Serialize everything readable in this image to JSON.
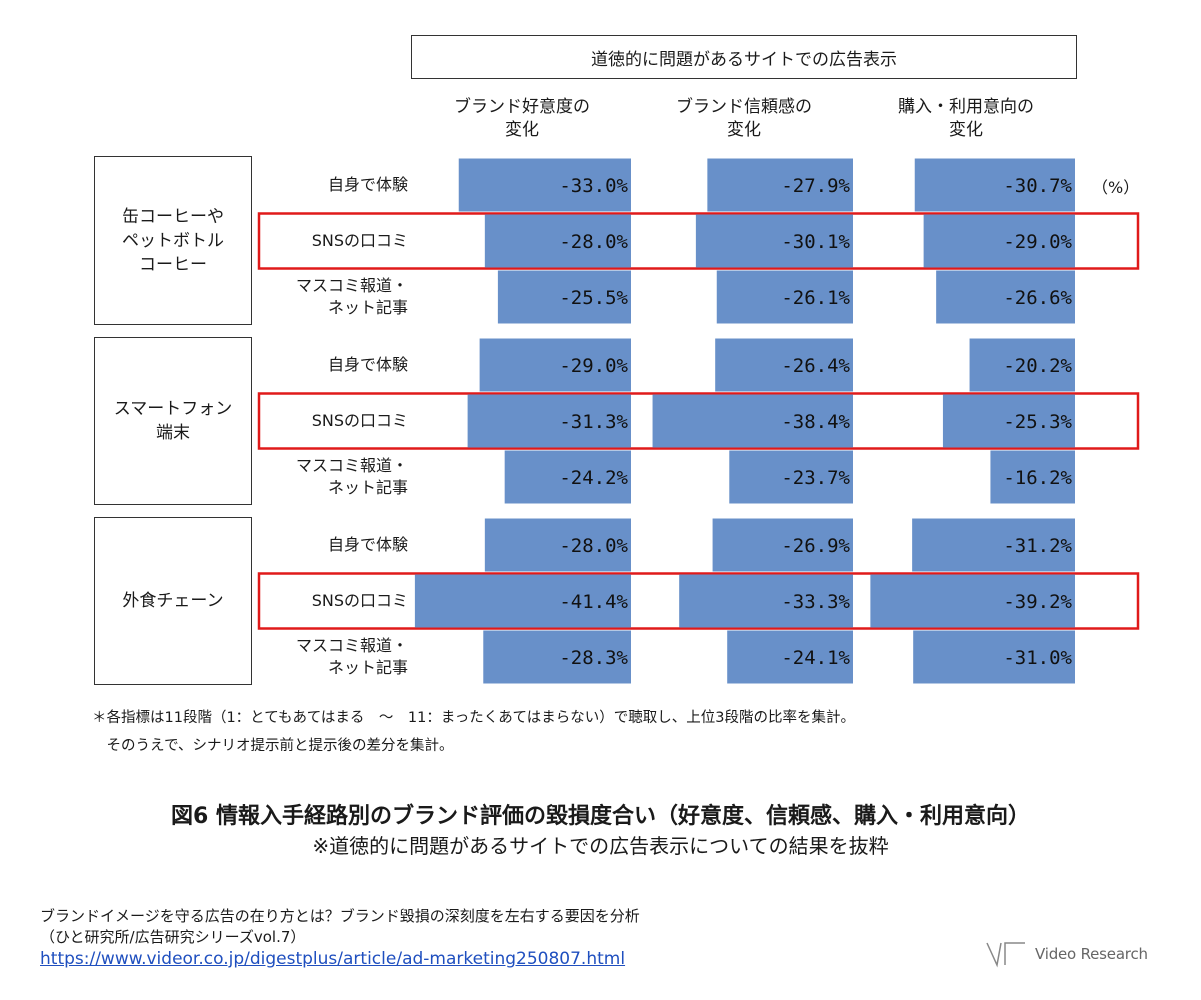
{
  "header": "道徳的に問題があるサイトでの広告表示",
  "unit": "（%）",
  "colors": {
    "bar": "#6890c9",
    "highlight": "#e01a1a"
  },
  "chart_data": {
    "type": "bar",
    "orientation": "horizontal",
    "metrics": [
      "ブランド好意度の\n変化",
      "ブランド信頼感の\n変化",
      "購入・利用意向の\n変化"
    ],
    "categories": [
      {
        "name": "缶コーヒーや\nペットボトル\nコーヒー",
        "rows": [
          {
            "label": "自身で体験",
            "values": [
              -33.0,
              -27.9,
              -30.7
            ],
            "highlighted": false
          },
          {
            "label": "SNSの口コミ",
            "values": [
              -28.0,
              -30.1,
              -29.0
            ],
            "highlighted": true
          },
          {
            "label": "マスコミ報道・\nネット記事",
            "values": [
              -25.5,
              -26.1,
              -26.6
            ],
            "highlighted": false
          }
        ]
      },
      {
        "name": "スマートフォン\n端末",
        "rows": [
          {
            "label": "自身で体験",
            "values": [
              -29.0,
              -26.4,
              -20.2
            ],
            "highlighted": false
          },
          {
            "label": "SNSの口コミ",
            "values": [
              -31.3,
              -38.4,
              -25.3
            ],
            "highlighted": true
          },
          {
            "label": "マスコミ報道・\nネット記事",
            "values": [
              -24.2,
              -23.7,
              -16.2
            ],
            "highlighted": false
          }
        ]
      },
      {
        "name": "外食チェーン",
        "rows": [
          {
            "label": "自身で体験",
            "values": [
              -28.0,
              -26.9,
              -31.2
            ],
            "highlighted": false
          },
          {
            "label": "SNSの口コミ",
            "values": [
              -41.4,
              -33.3,
              -39.2
            ],
            "highlighted": true
          },
          {
            "label": "マスコミ報道・\nネット記事",
            "values": [
              -28.3,
              -24.1,
              -31.0
            ],
            "highlighted": false
          }
        ]
      }
    ]
  },
  "notes": {
    "line1": "＊各指標は11段階（1：とてもあてはまる　～　11：まったくあてはまらない）で聴取し、上位3段階の比率を集計。",
    "line2": "　そのうえで、シナリオ提示前と提示後の差分を集計。"
  },
  "figure": {
    "title": "図6 情報入手経路別のブランド評価の毀損度合い（好意度、信頼感、購入・利用意向）",
    "subtitle": "※道徳的に問題があるサイトでの広告表示についての結果を抜粋"
  },
  "source": {
    "line1": "ブランドイメージを守る広告の在り方とは？ブランド毀損の深刻度を左右する要因を分析",
    "line2": "（ひと研究所/広告研究シリーズvol.7）",
    "url": "https://www.videor.co.jp/digestplus/article/ad-marketing250807.html"
  },
  "logo_text": "Video Research"
}
